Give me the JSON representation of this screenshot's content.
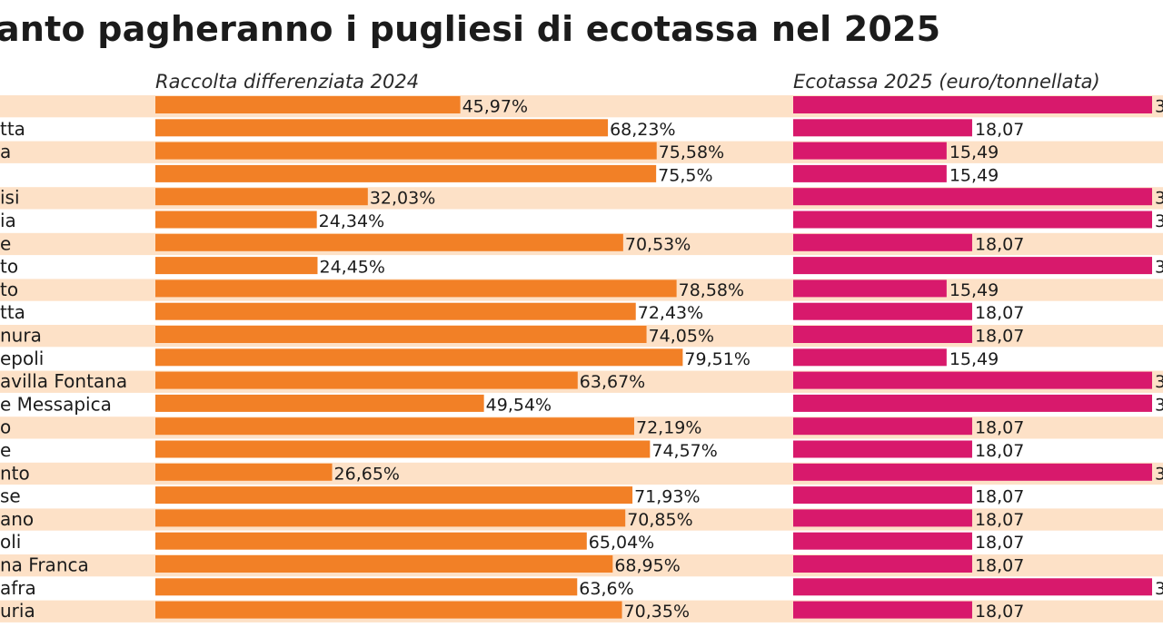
{
  "title": "anto pagheranno i pugliesi di ecotassa nel 2025",
  "chart_data": {
    "type": "bar",
    "categories": [
      "",
      "tta",
      "a",
      "",
      "isi",
      "ia",
      "e",
      "to",
      "to",
      "tta",
      "nura",
      "epoli",
      "avilla Fontana",
      "e Messapica",
      "o",
      "e",
      "nto",
      "se",
      "ano",
      "oli",
      "na Franca",
      "afra",
      "uria"
    ],
    "series": [
      {
        "name": "Raccolta differenziata 2024",
        "values": [
          45.97,
          68.23,
          75.58,
          75.5,
          32.03,
          24.34,
          70.53,
          24.45,
          78.58,
          72.43,
          74.05,
          79.51,
          63.67,
          49.54,
          72.19,
          74.57,
          26.65,
          71.93,
          70.85,
          65.04,
          68.95,
          63.6,
          70.35
        ],
        "labels": [
          "45,97%",
          "68,23%",
          "75,58%",
          "75,5%",
          "32,03%",
          "24,34%",
          "70,53%",
          "24,45%",
          "78,58%",
          "72,43%",
          "74,05%",
          "79,51%",
          "63,67%",
          "49,54%",
          "72,19%",
          "74,57%",
          "26,65%",
          "71,93%",
          "70,85%",
          "65,04%",
          "68,95%",
          "63,6%",
          "70,35%"
        ],
        "xlim": [
          0,
          100
        ],
        "color": "#f28026"
      },
      {
        "name": "Ecotassa 2025 (euro/tonnellata)",
        "values": [
          null,
          18.07,
          15.49,
          15.49,
          null,
          null,
          18.07,
          null,
          15.49,
          18.07,
          18.07,
          15.49,
          null,
          null,
          18.07,
          18.07,
          null,
          18.07,
          18.07,
          18.07,
          18.07,
          null,
          18.07
        ],
        "labels": [
          "3",
          "18,07",
          "15,49",
          "15,49",
          "3",
          "3",
          "18,07",
          "3",
          "15,49",
          "18,07",
          "18,07",
          "15,49",
          "3",
          "3",
          "18,07",
          "18,07",
          "3",
          "18,07",
          "18,07",
          "18,07",
          "18,07",
          "3",
          "18,07"
        ],
        "color": "#d8196c"
      }
    ],
    "row_band_color": "#fde1c7"
  }
}
